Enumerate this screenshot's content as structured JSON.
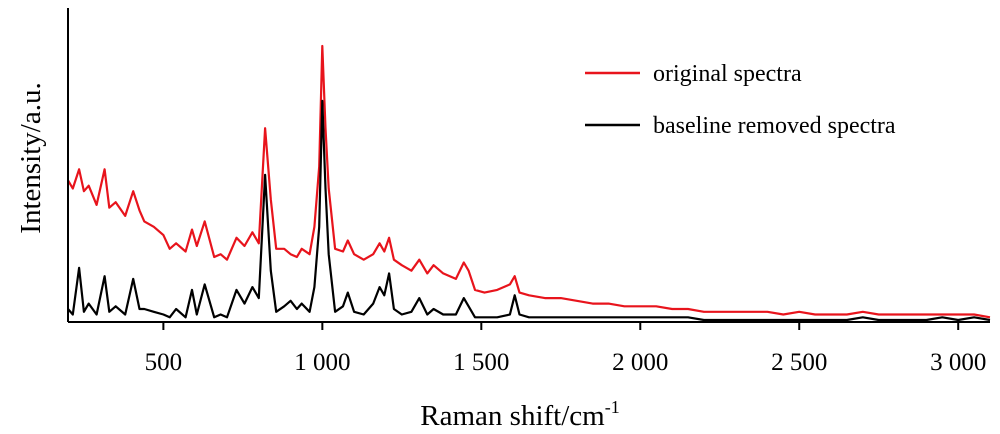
{
  "chart_data": {
    "type": "line",
    "title": "",
    "xlabel": "Raman shift/cm",
    "xlabel_superscript": "-1",
    "ylabel": "Intensity/a.u.",
    "xlim": [
      200,
      3100
    ],
    "ylim": [
      0,
      100
    ],
    "x_ticks": [
      500,
      1000,
      1500,
      2000,
      2500,
      3000
    ],
    "x_tick_labels": [
      "500",
      "1 000",
      "1 500",
      "2 000",
      "2 500",
      "3 000"
    ],
    "y_ticks_shown": false,
    "grid": false,
    "legend": {
      "placement": "top-right"
    },
    "series": [
      {
        "name": "original spectra",
        "color": "#e8141c",
        "x": [
          200,
          215,
          235,
          250,
          265,
          290,
          315,
          330,
          350,
          380,
          405,
          425,
          440,
          470,
          500,
          520,
          540,
          570,
          590,
          605,
          630,
          660,
          680,
          700,
          730,
          755,
          780,
          800,
          820,
          838,
          855,
          880,
          900,
          920,
          935,
          960,
          975,
          990,
          1000,
          1010,
          1020,
          1040,
          1065,
          1080,
          1100,
          1130,
          1160,
          1180,
          1195,
          1210,
          1225,
          1250,
          1280,
          1305,
          1330,
          1350,
          1380,
          1420,
          1445,
          1460,
          1480,
          1510,
          1550,
          1590,
          1605,
          1620,
          1650,
          1700,
          1750,
          1800,
          1850,
          1900,
          1950,
          2000,
          2050,
          2100,
          2150,
          2200,
          2250,
          2300,
          2350,
          2400,
          2450,
          2500,
          2550,
          2600,
          2650,
          2700,
          2750,
          2800,
          2850,
          2900,
          2950,
          3000,
          3050,
          3100
        ],
        "y": [
          51,
          48,
          55,
          47,
          49,
          42,
          55,
          41,
          43,
          38,
          47,
          40,
          36,
          34,
          31,
          26,
          28,
          25,
          33,
          27,
          36,
          23,
          24,
          22,
          30,
          27,
          32,
          28,
          70,
          44,
          26,
          26,
          24,
          23,
          26,
          24,
          34,
          56,
          100,
          70,
          48,
          26,
          25,
          29,
          24,
          22,
          24,
          28,
          25,
          30,
          22,
          20,
          18,
          22,
          17,
          20,
          17,
          15,
          21,
          18,
          11,
          10,
          11,
          13,
          16,
          10,
          9,
          8,
          8,
          7,
          6,
          6,
          5,
          5,
          5,
          4,
          4,
          3,
          3,
          3,
          3,
          3,
          2,
          3,
          2,
          2,
          2,
          3,
          2,
          2,
          2,
          2,
          2,
          2,
          2,
          1
        ]
      },
      {
        "name": "baseline removed spectra",
        "color": "#000000",
        "x": [
          200,
          215,
          235,
          250,
          265,
          290,
          315,
          330,
          350,
          380,
          405,
          425,
          440,
          470,
          500,
          520,
          540,
          570,
          590,
          605,
          630,
          660,
          680,
          700,
          730,
          755,
          780,
          800,
          820,
          838,
          855,
          880,
          900,
          920,
          935,
          960,
          975,
          990,
          1000,
          1010,
          1020,
          1040,
          1065,
          1080,
          1100,
          1130,
          1160,
          1180,
          1195,
          1210,
          1225,
          1250,
          1280,
          1305,
          1330,
          1350,
          1380,
          1420,
          1445,
          1460,
          1480,
          1510,
          1550,
          1590,
          1605,
          1620,
          1650,
          1700,
          1750,
          1800,
          1850,
          1900,
          1950,
          2000,
          2050,
          2100,
          2150,
          2200,
          2250,
          2300,
          2350,
          2400,
          2450,
          2500,
          2550,
          2600,
          2650,
          2700,
          2750,
          2800,
          2850,
          2900,
          2950,
          3000,
          3050,
          3100
        ],
        "y": [
          4,
          2,
          19,
          3,
          6,
          2,
          16,
          3,
          5,
          2,
          15,
          4,
          4,
          3,
          2,
          1,
          4,
          1,
          11,
          2,
          13,
          1,
          2,
          1,
          11,
          6,
          12,
          8,
          53,
          18,
          3,
          5,
          7,
          4,
          6,
          3,
          12,
          34,
          80,
          48,
          24,
          3,
          5,
          10,
          3,
          2,
          6,
          12,
          9,
          17,
          4,
          2,
          3,
          8,
          2,
          4,
          2,
          2,
          8,
          5,
          1,
          1,
          1,
          2,
          9,
          2,
          1,
          1,
          1,
          1,
          1,
          1,
          1,
          1,
          1,
          1,
          1,
          0,
          0,
          0,
          0,
          0,
          0,
          0,
          0,
          0,
          0,
          1,
          0,
          0,
          0,
          0,
          1,
          0,
          1,
          0
        ]
      }
    ]
  }
}
